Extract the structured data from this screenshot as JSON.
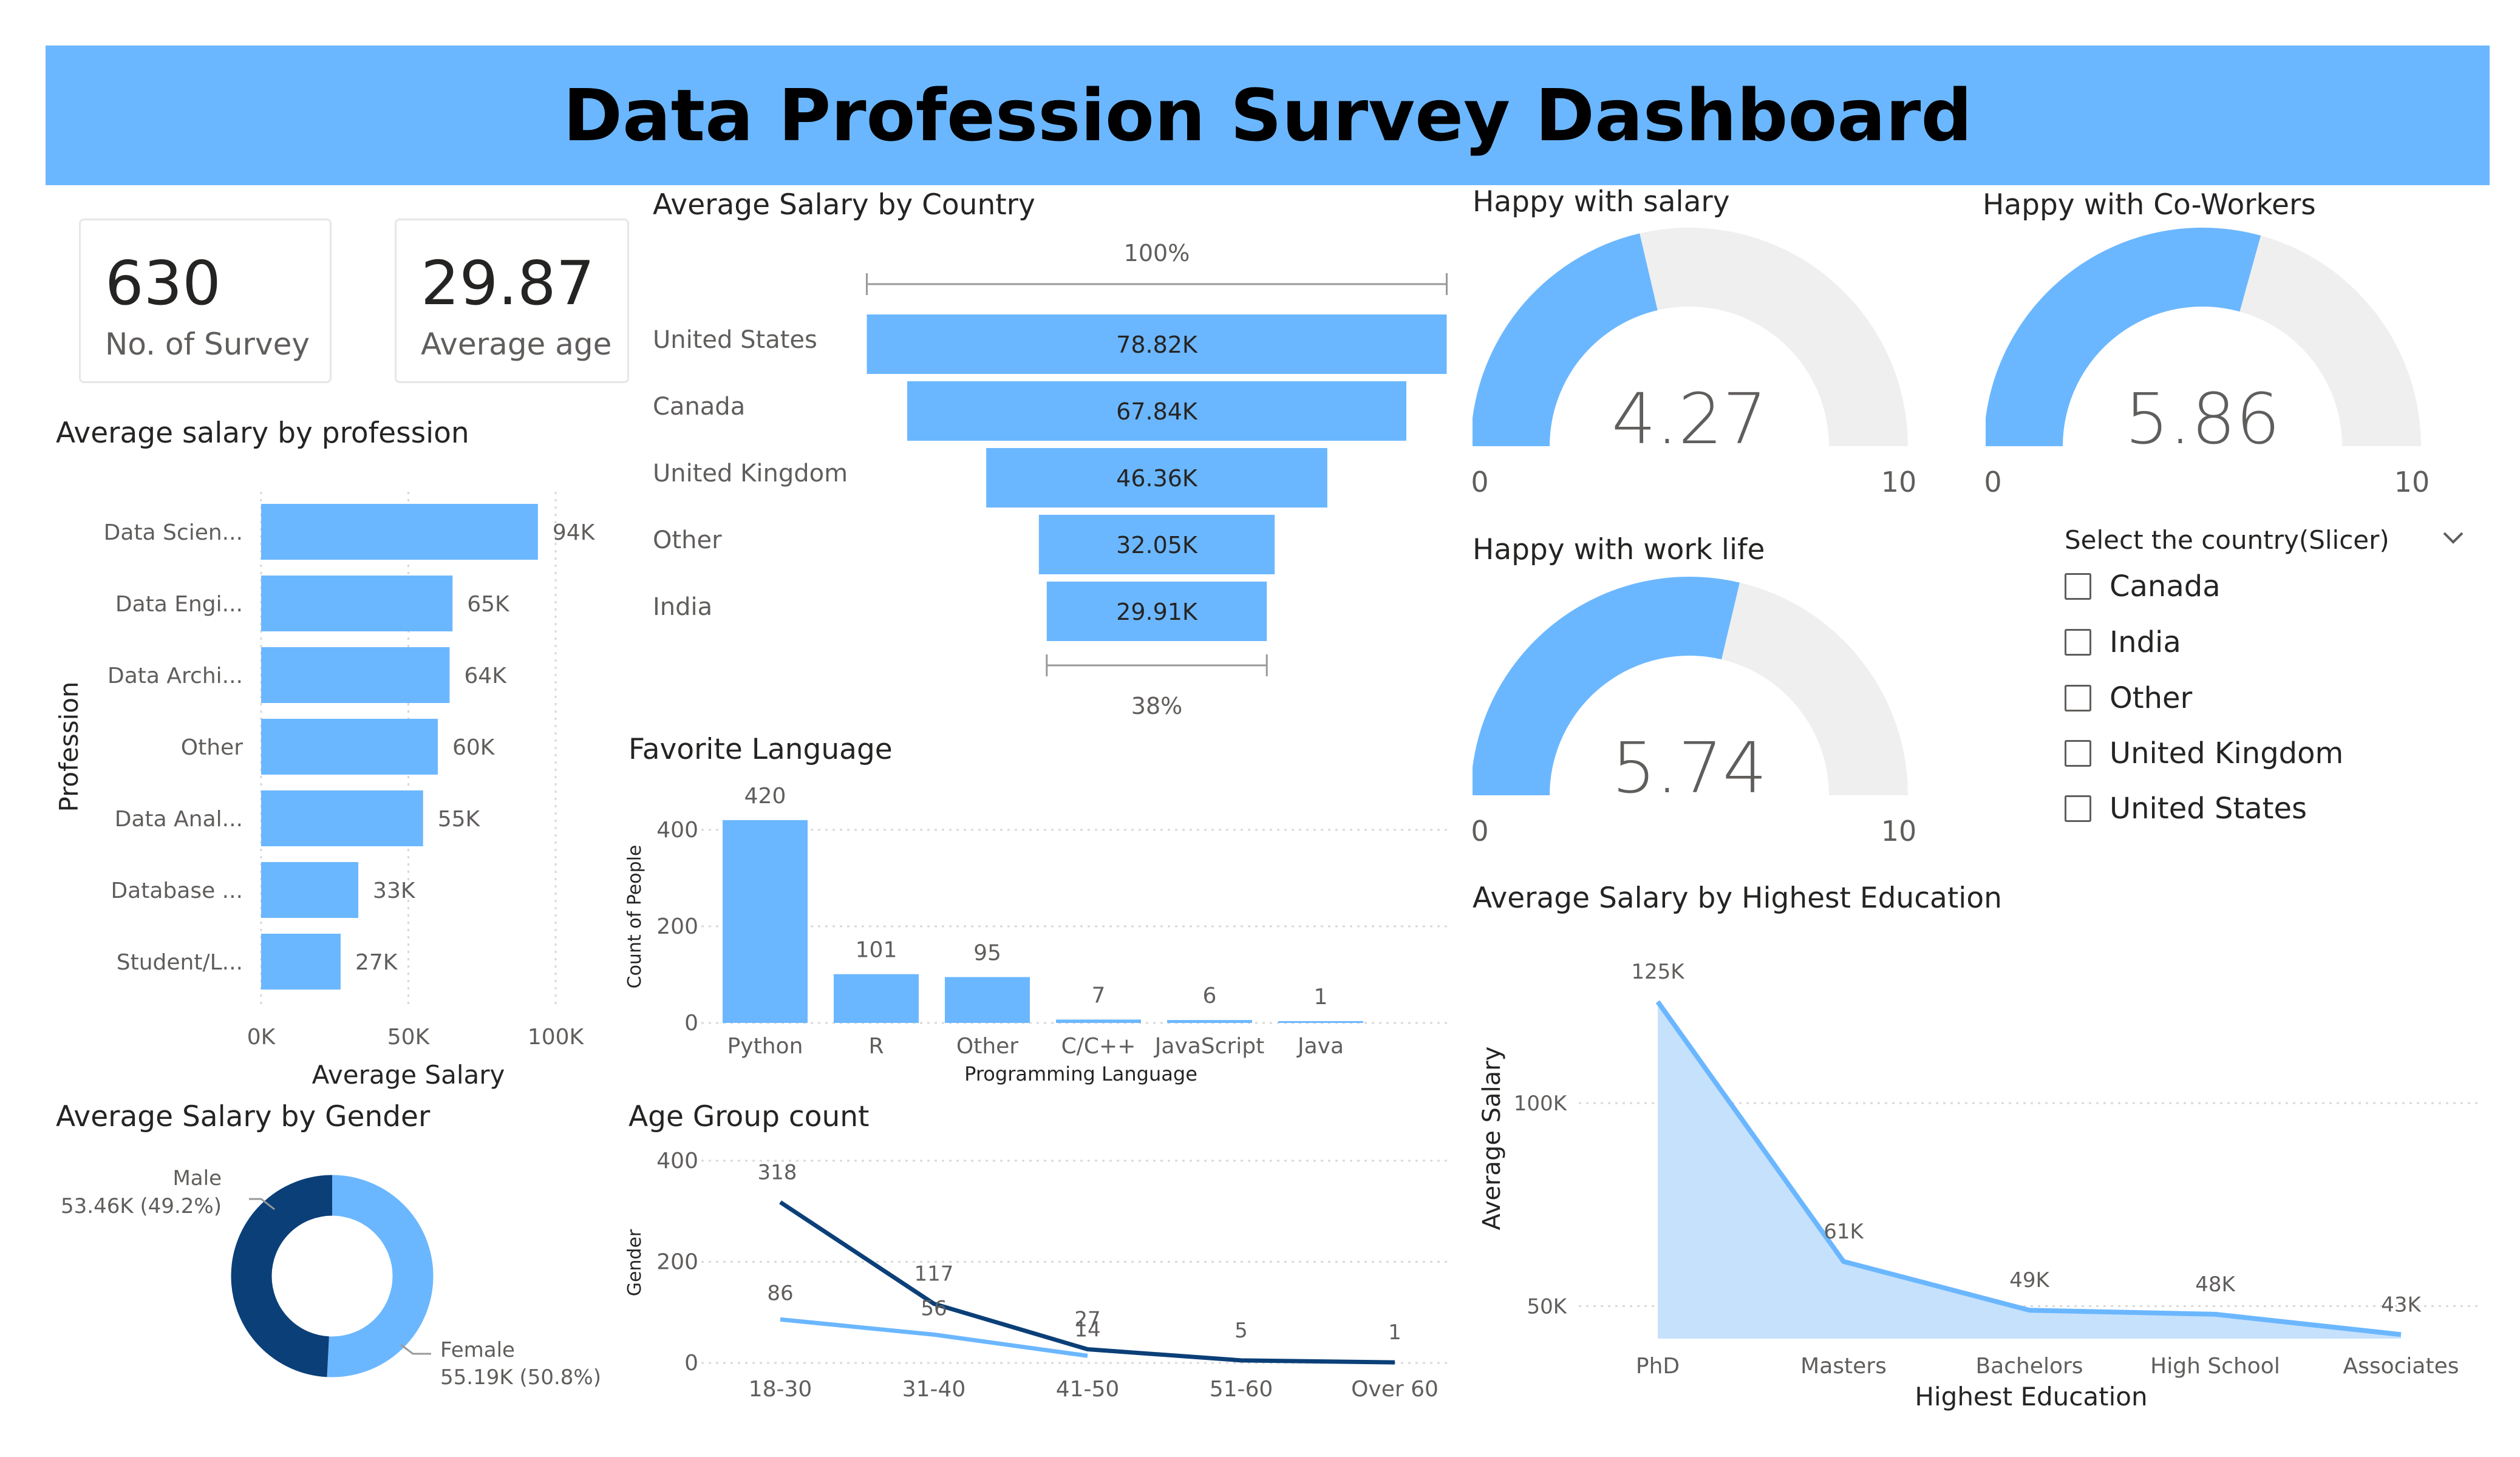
{
  "dashboard": {
    "title": "Data Profession Survey Dashboard"
  },
  "kpis": [
    {
      "value": "630",
      "label": "No. of Survey"
    },
    {
      "value": "29.87",
      "label": "Average age"
    }
  ],
  "colors": {
    "banner": "#6bb7ff",
    "primary": "#6bb7ff",
    "dark": "#0b3f78",
    "gauge_bg": "#efefef",
    "area_fill": "#c6e1fb"
  },
  "gauges": [
    {
      "title": "Happy with salary",
      "value": 4.27,
      "display": "4.27",
      "min": "0",
      "max": "10"
    },
    {
      "title": "Happy with Co-Workers",
      "value": 5.86,
      "display": "5.86",
      "min": "0",
      "max": "10"
    },
    {
      "title": "Happy with work life",
      "value": 5.74,
      "display": "5.74",
      "min": "0",
      "max": "10"
    }
  ],
  "slicer": {
    "title": "Select the country(Slicer)",
    "options": [
      "Canada",
      "India",
      "Other",
      "United Kingdom",
      "United States"
    ]
  },
  "chart_data": [
    {
      "id": "profession",
      "type": "bar",
      "orientation": "horizontal",
      "title": "Average salary by profession",
      "xlabel": "Average Salary",
      "ylabel": "Profession",
      "categories": [
        "Data Scien...",
        "Data Engi...",
        "Data Archi...",
        "Other",
        "Data Anal...",
        "Database ...",
        "Student/L..."
      ],
      "values": [
        94,
        65,
        64,
        60,
        55,
        33,
        27
      ],
      "value_labels": [
        "94K",
        "65K",
        "64K",
        "60K",
        "55K",
        "33K",
        "27K"
      ],
      "xlim": [
        0,
        100
      ],
      "x_ticks": [
        "0K",
        "50K",
        "100K"
      ],
      "grid": true
    },
    {
      "id": "country",
      "type": "bar",
      "subtype": "funnel",
      "title": "Average Salary by Country",
      "categories": [
        "United States",
        "Canada",
        "United Kingdom",
        "Other",
        "India"
      ],
      "values": [
        78.82,
        67.84,
        46.36,
        32.05,
        29.91
      ],
      "value_labels": [
        "78.82K",
        "67.84K",
        "46.36K",
        "32.05K",
        "29.91K"
      ],
      "top_percent": "100%",
      "bottom_percent": "38%"
    },
    {
      "id": "language",
      "type": "bar",
      "title": "Favorite Language",
      "xlabel": "Programming Language",
      "ylabel": "Count of People",
      "categories": [
        "Python",
        "R",
        "Other",
        "C/C++",
        "JavaScript",
        "Java"
      ],
      "values": [
        420,
        101,
        95,
        7,
        6,
        1
      ],
      "ylim": [
        0,
        440
      ],
      "y_ticks": [
        "0",
        "200",
        "400"
      ],
      "grid": true
    },
    {
      "id": "gender",
      "type": "pie",
      "subtype": "donut",
      "title": "Average Salary by Gender",
      "slices": [
        {
          "name": "Male",
          "value": 53.46,
          "label": "53.46K (49.2%)",
          "percent": 49.2
        },
        {
          "name": "Female",
          "value": 55.19,
          "label": "55.19K (50.8%)",
          "percent": 50.8
        }
      ]
    },
    {
      "id": "age",
      "type": "line",
      "title": "Age Group count",
      "ylabel": "Gender",
      "categories": [
        "18-30",
        "31-40",
        "41-50",
        "51-60",
        "Over 60"
      ],
      "series": [
        {
          "values": [
            318,
            117,
            27,
            5,
            1
          ],
          "labels": [
            "318",
            "117",
            "27",
            "5",
            "1"
          ]
        },
        {
          "values": [
            86,
            56,
            14,
            null,
            null
          ],
          "labels": [
            "86",
            "56",
            "14",
            "",
            ""
          ]
        }
      ],
      "ylim": [
        0,
        400
      ],
      "y_ticks": [
        "0",
        "200",
        "400"
      ],
      "grid": true
    },
    {
      "id": "education",
      "type": "area",
      "title": "Average Salary by Highest Education",
      "xlabel": "Highest Education",
      "ylabel": "Average Salary",
      "categories": [
        "PhD",
        "Masters",
        "Bachelors",
        "High School",
        "Associates"
      ],
      "values": [
        125,
        61,
        49,
        48,
        43
      ],
      "value_labels": [
        "125K",
        "61K",
        "49K",
        "48K",
        "43K"
      ],
      "ylim": [
        42,
        125
      ],
      "y_ticks": [
        {
          "v": 50,
          "label": "50K"
        },
        {
          "v": 100,
          "label": "100K"
        }
      ],
      "grid": true
    }
  ]
}
